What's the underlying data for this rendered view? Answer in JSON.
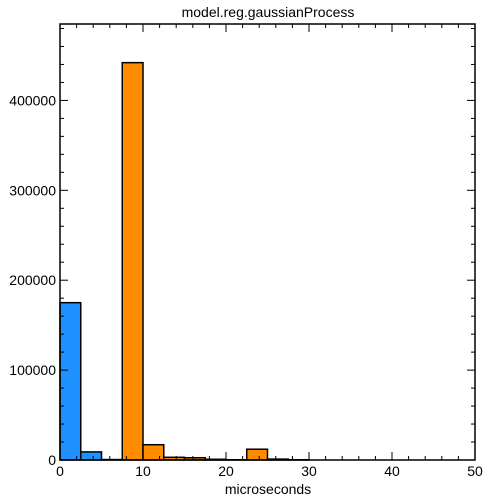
{
  "chart_data": {
    "type": "bar",
    "title": "model.reg.gaussianProcess",
    "xlabel": "microseconds",
    "ylabel": "",
    "xlim": [
      0,
      50
    ],
    "ylim": [
      0,
      485000
    ],
    "xticks": [
      "0",
      "10",
      "20",
      "30",
      "40",
      "50"
    ],
    "yticks": [
      "0",
      "100000",
      "200000",
      "300000",
      "400000"
    ],
    "grid": false,
    "series": [
      {
        "color": "#1e90ff",
        "bins": [
          {
            "x0": 0,
            "x1": 2.5,
            "value": 175000
          },
          {
            "x0": 2.5,
            "x1": 5,
            "value": 9000
          },
          {
            "x0": 5,
            "x1": 7.5,
            "value": 500
          }
        ]
      },
      {
        "color": "#ff8c00",
        "bins": [
          {
            "x0": 7.5,
            "x1": 10,
            "value": 442000
          },
          {
            "x0": 10,
            "x1": 12.5,
            "value": 17000
          },
          {
            "x0": 12.5,
            "x1": 15,
            "value": 3000
          },
          {
            "x0": 15,
            "x1": 17.5,
            "value": 2500
          },
          {
            "x0": 17.5,
            "x1": 20,
            "value": 800
          },
          {
            "x0": 20,
            "x1": 22.5,
            "value": 300
          },
          {
            "x0": 22.5,
            "x1": 25,
            "value": 12000
          },
          {
            "x0": 25,
            "x1": 27.5,
            "value": 1000
          },
          {
            "x0": 27.5,
            "x1": 30,
            "value": 300
          }
        ]
      }
    ]
  }
}
